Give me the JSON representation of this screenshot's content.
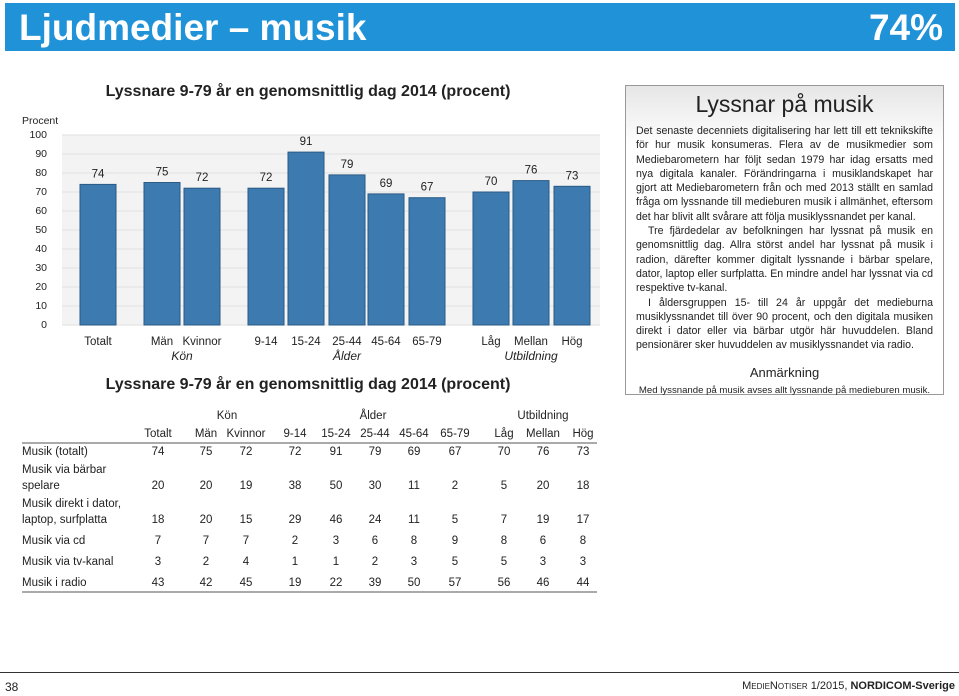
{
  "header": {
    "title": "Ljudmedier – musik",
    "figure": "74%"
  },
  "chart_data": {
    "type": "bar",
    "title": "Lyssnare 9-79 år en genomsnittlig dag 2014 (procent)",
    "y_label": "Procent",
    "categories": [
      "Totalt",
      "Män",
      "Kvinnor",
      "9-14",
      "15-24",
      "25-44",
      "45-64",
      "65-79",
      "Låg",
      "Mellan",
      "Hög"
    ],
    "groups": [
      "Kön",
      "Ålder",
      "Utbildning"
    ],
    "values": [
      74,
      75,
      72,
      72,
      91,
      79,
      69,
      67,
      70,
      76,
      73
    ],
    "color": "#3d7ab0",
    "ylim": [
      0,
      100
    ],
    "yticks": [
      0,
      10,
      20,
      30,
      40,
      50,
      60,
      70,
      80,
      90,
      100
    ],
    "grid": true
  },
  "table": {
    "title": "Lyssnare 9-79 år en genomsnittlig dag 2014 (procent)",
    "groups": [
      "Kön",
      "Ålder",
      "Utbildning"
    ],
    "columns": [
      "Totalt",
      "Män",
      "Kvinnor",
      "9-14",
      "15-24",
      "25-44",
      "45-64",
      "65-79",
      "Låg",
      "Mellan",
      "Hög"
    ],
    "rows": [
      {
        "label": [
          "Musik (totalt)"
        ],
        "values": [
          74,
          75,
          72,
          72,
          91,
          79,
          69,
          67,
          70,
          76,
          73
        ]
      },
      {
        "label": [
          "Musik via bärbar",
          "spelare"
        ],
        "values": [
          20,
          20,
          19,
          38,
          50,
          30,
          11,
          2,
          5,
          20,
          18
        ]
      },
      {
        "label": [
          "Musik direkt i dator,",
          "laptop, surfplatta"
        ],
        "values": [
          18,
          20,
          15,
          29,
          46,
          24,
          11,
          5,
          7,
          19,
          17
        ]
      },
      {
        "label": [
          "Musik via cd"
        ],
        "values": [
          7,
          7,
          7,
          2,
          3,
          6,
          8,
          9,
          8,
          6,
          8
        ]
      },
      {
        "label": [
          "Musik via tv-kanal"
        ],
        "values": [
          3,
          2,
          4,
          1,
          1,
          2,
          3,
          5,
          5,
          3,
          3
        ]
      },
      {
        "label": [
          "Musik i radio"
        ],
        "values": [
          43,
          42,
          45,
          19,
          22,
          39,
          50,
          57,
          56,
          46,
          44
        ]
      }
    ]
  },
  "sidebar": {
    "title": "Lyssnar på musik",
    "paragraphs": [
      "Det senaste decenniets digitalisering har lett till ett teknikskifte för hur musik konsumeras. Flera av de musikmedier som Mediebarometern har följt sedan 1979 har idag ersatts med nya digitala kanaler. Förändringarna i musiklandskapet har gjort att Mediebarometern från och med 2013 ställt en samlad fråga om lyssnande till medieburen musik i allmänhet, eftersom det har blivit allt svårare att följa musiklyssnandet per kanal.",
      "Tre fjärdedelar av befolkningen har lyssnat på musik en genomsnittlig dag. Allra störst andel har lyssnat på musik i radion, därefter kommer digitalt lyssnande i bärbar spelare, dator, laptop eller surfplatta. En mindre andel har lyssnat via cd respektive tv-kanal.",
      "I åldersgruppen 15- till 24 år uppgår det medieburna musiklyssnandet till över 90 procent, och den digitala musiken direkt i dator eller via bärbar utgör här huvuddelen. Bland pensionärer sker huvuddelen av musiklyssnandet via radio."
    ],
    "note_title": "Anmärkning",
    "note": "Med lyssnande på musik avses allt lyssnande på medieburen musik."
  },
  "footer": {
    "page": "38",
    "publication": "MedieNotiser 1/2015,",
    "publisher": "NORDICOM-Sverige"
  }
}
